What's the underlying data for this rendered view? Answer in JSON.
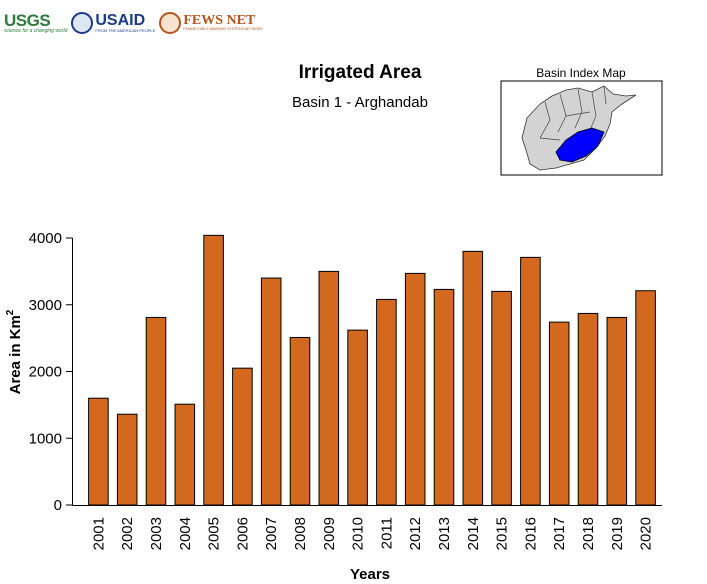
{
  "logos": {
    "usgs": {
      "name": "USGS",
      "tagline": "science for a changing world"
    },
    "usaid": {
      "name": "USAID",
      "tagline": "FROM THE AMERICAN PEOPLE"
    },
    "fews": {
      "name": "FEWS NET",
      "tagline": "FAMINE EARLY WARNING SYSTEMS NETWORK"
    }
  },
  "inset": {
    "title": "Basin Index Map",
    "highlight_color": "#0000ff",
    "basin_color": "#d3d3d3"
  },
  "colors": {
    "bar_fill": "#d2691e",
    "bar_stroke": "#000000"
  },
  "chart_data": {
    "type": "bar",
    "title": "Irrigated Area",
    "subtitle": "Basin 1 - Arghandab",
    "xlabel": "Years",
    "ylabel": "Area in Km",
    "ylabel_superscript": "2",
    "ylim": [
      0,
      4000
    ],
    "yticks": [
      0,
      1000,
      2000,
      3000,
      4000
    ],
    "categories": [
      "2001",
      "2002",
      "2003",
      "2004",
      "2005",
      "2006",
      "2007",
      "2008",
      "2009",
      "2010",
      "2011",
      "2012",
      "2013",
      "2014",
      "2015",
      "2016",
      "2017",
      "2018",
      "2019",
      "2020"
    ],
    "values": [
      1600,
      1360,
      2810,
      1510,
      4040,
      2050,
      3400,
      2510,
      3500,
      2620,
      3080,
      3470,
      3230,
      3800,
      3200,
      3710,
      2740,
      2870,
      2810,
      3210
    ],
    "grid": false,
    "legend": "none"
  }
}
